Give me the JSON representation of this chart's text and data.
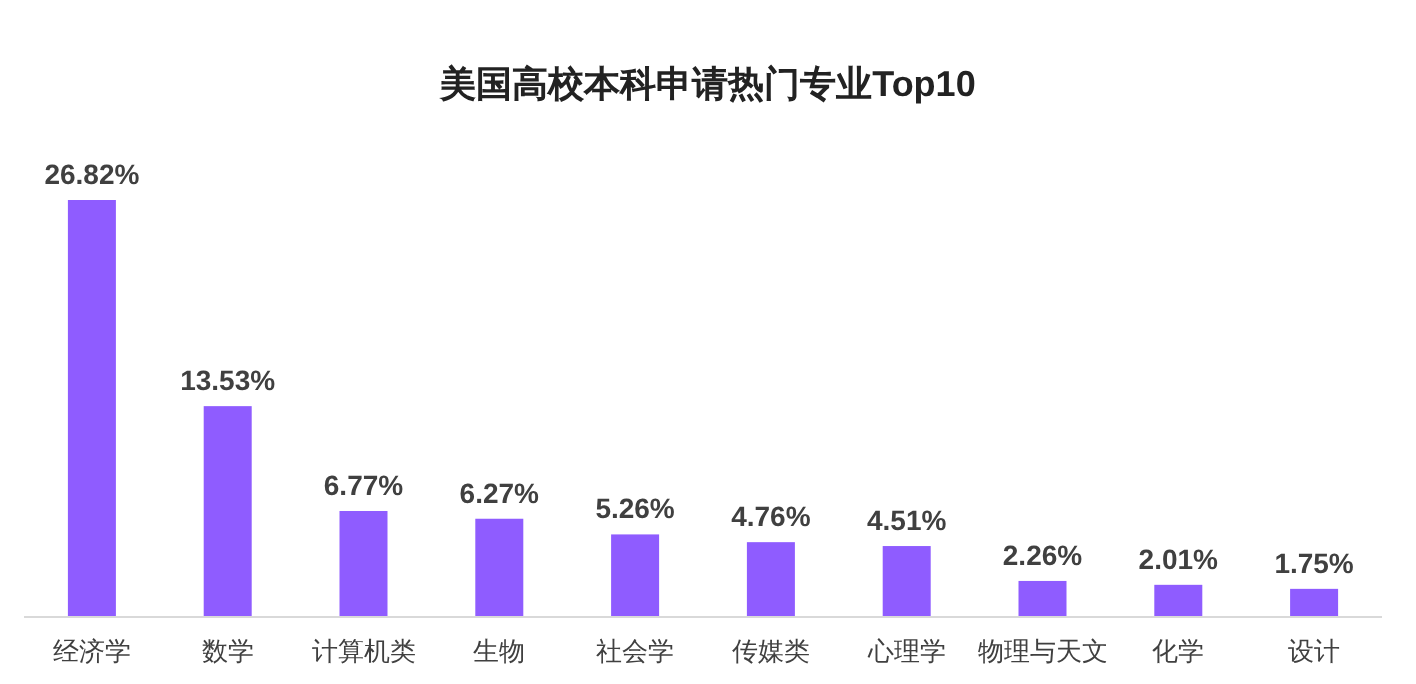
{
  "chart_data": {
    "type": "bar",
    "title": "美国高校本科申请热门专业Top10",
    "categories": [
      "经济学",
      "数学",
      "计算机类",
      "生物",
      "社会学",
      "传媒类",
      "心理学",
      "物理与天文",
      "化学",
      "设计"
    ],
    "values": [
      26.82,
      13.53,
      6.77,
      6.27,
      5.26,
      4.76,
      4.51,
      2.26,
      2.01,
      1.75
    ],
    "value_labels": [
      "26.82%",
      "13.53%",
      "6.77%",
      "6.27%",
      "5.26%",
      "4.76%",
      "4.51%",
      "2.26%",
      "2.01%",
      "1.75%"
    ],
    "color": "#8f5cff"
  }
}
